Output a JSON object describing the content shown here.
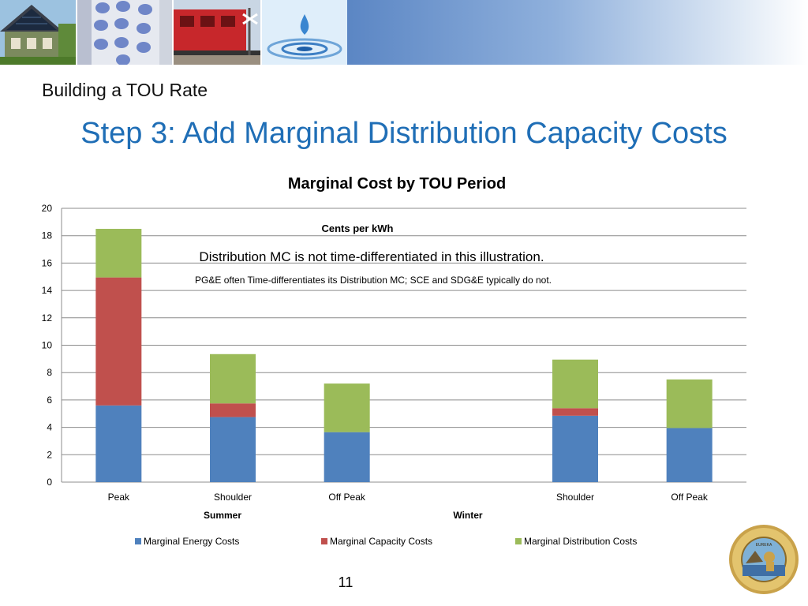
{
  "slide": {
    "subtitle": "Building a TOU Rate",
    "title": "Step 3: Add Marginal Distribution Capacity Costs",
    "page_number": "11"
  },
  "colors": {
    "title_blue": "#1f6eb6",
    "energy": "#4f81bd",
    "capacity": "#c0504d",
    "distribution": "#9bbb59",
    "grid": "#8c8c8c"
  },
  "chart_data": {
    "type": "bar",
    "stacked": true,
    "title": "Marginal Cost by TOU Period",
    "ylabel": "Cents per kWh",
    "ylim": [
      0,
      20
    ],
    "yticks": [
      0,
      2,
      4,
      6,
      8,
      10,
      12,
      14,
      16,
      18,
      20
    ],
    "grid": true,
    "legend_position": "bottom",
    "categories": [
      "Peak",
      "Shoulder",
      "Off Peak",
      "",
      "Shoulder",
      "Off Peak"
    ],
    "groups": [
      {
        "label": "Summer"
      },
      {
        "label": "Winter"
      }
    ],
    "series": [
      {
        "name": "Marginal Energy Costs",
        "color": "#4f81bd",
        "values": [
          5.6,
          4.75,
          3.65,
          null,
          4.85,
          3.95
        ]
      },
      {
        "name": "Marginal Capacity Costs",
        "color": "#c0504d",
        "values": [
          9.35,
          1.0,
          0,
          null,
          0.55,
          0
        ]
      },
      {
        "name": "Marginal Distribution Costs",
        "color": "#9bbb59",
        "values": [
          3.55,
          3.6,
          3.55,
          null,
          3.55,
          3.55
        ]
      }
    ],
    "annotations": [
      "Distribution MC is not time-differentiated in this illustration.",
      "PG&E often Time-differentiates its Distribution MC; SCE and SDG&E typically do not."
    ]
  }
}
